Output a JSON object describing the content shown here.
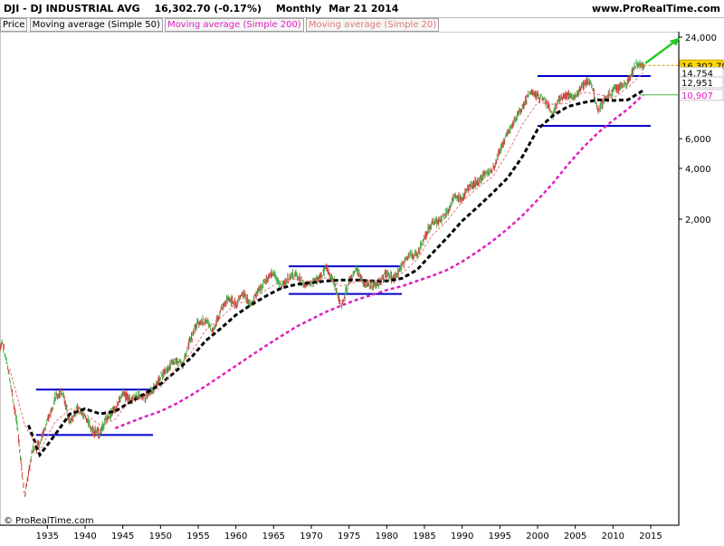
{
  "header": {
    "symbol": "DJI - DJ INDUSTRIAL AVG",
    "quote": "16,302.70 (-0.17%)",
    "period": "Monthly",
    "date": "Mar 21 2014",
    "site": "www.ProRealTime.com"
  },
  "legend": [
    {
      "label": "Price",
      "color": "#000000"
    },
    {
      "label": "Moving average (Simple 50)",
      "color": "#000000"
    },
    {
      "label": "Moving average (Simple 200)",
      "color": "#e020c0"
    },
    {
      "label": "Moving average (Simple 20)",
      "color": "#e07878"
    }
  ],
  "copyright": "© ProRealTime.com",
  "chart_data": {
    "type": "line",
    "scale": "log",
    "x_range": [
      1928,
      2018
    ],
    "y_ticks": [
      "24,000",
      "6,000",
      "4,000",
      "2,000"
    ],
    "y_tick_values": [
      24000,
      6000,
      4000,
      2000
    ],
    "x_ticks": [
      "1935",
      "1940",
      "1945",
      "1950",
      "1955",
      "1960",
      "1965",
      "1970",
      "1975",
      "1980",
      "1985",
      "1990",
      "1995",
      "2000",
      "2005",
      "2010",
      "2015"
    ],
    "x_tick_values": [
      1935,
      1940,
      1945,
      1950,
      1955,
      1960,
      1965,
      1970,
      1975,
      1980,
      1985,
      1990,
      1995,
      2000,
      2005,
      2010,
      2015
    ],
    "price_labels": [
      {
        "text": "16,302.70",
        "value": 16302.7,
        "bg": "#ffd700",
        "fg": "#000000"
      },
      {
        "text": "14,754",
        "value": 14754,
        "bg": "#ffffff",
        "fg": "#000000"
      },
      {
        "text": "12,951",
        "value": 12951,
        "bg": "#ffffff",
        "fg": "#000000"
      },
      {
        "text": "10,907",
        "value": 10907,
        "bg": "#ffffff",
        "fg": "#e020c0"
      }
    ],
    "series": [
      {
        "name": "Price",
        "color": "#48b048",
        "points": [
          [
            1928,
            270
          ],
          [
            1929,
            380
          ],
          [
            1930,
            230
          ],
          [
            1931,
            120
          ],
          [
            1932,
            45
          ],
          [
            1933,
            85
          ],
          [
            1934,
            95
          ],
          [
            1935,
            125
          ],
          [
            1936,
            175
          ],
          [
            1937,
            190
          ],
          [
            1938,
            125
          ],
          [
            1939,
            150
          ],
          [
            1940,
            135
          ],
          [
            1941,
            112
          ],
          [
            1942,
            108
          ],
          [
            1943,
            135
          ],
          [
            1944,
            150
          ],
          [
            1945,
            185
          ],
          [
            1946,
            170
          ],
          [
            1947,
            180
          ],
          [
            1948,
            178
          ],
          [
            1949,
            195
          ],
          [
            1950,
            230
          ],
          [
            1951,
            265
          ],
          [
            1952,
            290
          ],
          [
            1953,
            280
          ],
          [
            1954,
            390
          ],
          [
            1955,
            490
          ],
          [
            1956,
            500
          ],
          [
            1957,
            440
          ],
          [
            1958,
            580
          ],
          [
            1959,
            680
          ],
          [
            1960,
            620
          ],
          [
            1961,
            730
          ],
          [
            1962,
            610
          ],
          [
            1963,
            760
          ],
          [
            1964,
            870
          ],
          [
            1965,
            960
          ],
          [
            1966,
            790
          ],
          [
            1967,
            900
          ],
          [
            1968,
            940
          ],
          [
            1969,
            810
          ],
          [
            1970,
            830
          ],
          [
            1971,
            890
          ],
          [
            1972,
            1020
          ],
          [
            1973,
            850
          ],
          [
            1974,
            610
          ],
          [
            1975,
            860
          ],
          [
            1976,
            1000
          ],
          [
            1977,
            830
          ],
          [
            1978,
            800
          ],
          [
            1979,
            840
          ],
          [
            1980,
            960
          ],
          [
            1981,
            880
          ],
          [
            1982,
            1050
          ],
          [
            1983,
            1250
          ],
          [
            1984,
            1210
          ],
          [
            1985,
            1550
          ],
          [
            1986,
            1900
          ],
          [
            1987,
            1950
          ],
          [
            1988,
            2170
          ],
          [
            1989,
            2750
          ],
          [
            1990,
            2630
          ],
          [
            1991,
            3170
          ],
          [
            1992,
            3300
          ],
          [
            1993,
            3750
          ],
          [
            1994,
            3830
          ],
          [
            1995,
            5100
          ],
          [
            1996,
            6450
          ],
          [
            1997,
            7900
          ],
          [
            1998,
            9180
          ],
          [
            1999,
            11450
          ],
          [
            2000,
            10800
          ],
          [
            2001,
            10000
          ],
          [
            2002,
            8350
          ],
          [
            2003,
            10450
          ],
          [
            2004,
            10780
          ],
          [
            2005,
            10720
          ],
          [
            2006,
            12460
          ],
          [
            2007,
            13260
          ],
          [
            2008,
            8780
          ],
          [
            2009,
            10430
          ],
          [
            2010,
            11580
          ],
          [
            2011,
            12220
          ],
          [
            2012,
            13100
          ],
          [
            2013,
            16580
          ],
          [
            2014,
            16302
          ]
        ]
      },
      {
        "name": "Moving average (Simple 50)",
        "color": "#000000",
        "points": [
          [
            1932.5,
            120
          ],
          [
            1934,
            80
          ],
          [
            1936,
            105
          ],
          [
            1938,
            140
          ],
          [
            1940,
            150
          ],
          [
            1942,
            140
          ],
          [
            1944,
            145
          ],
          [
            1946,
            165
          ],
          [
            1948,
            185
          ],
          [
            1950,
            210
          ],
          [
            1952,
            250
          ],
          [
            1954,
            300
          ],
          [
            1956,
            380
          ],
          [
            1958,
            450
          ],
          [
            1960,
            540
          ],
          [
            1962,
            620
          ],
          [
            1964,
            700
          ],
          [
            1966,
            780
          ],
          [
            1968,
            820
          ],
          [
            1970,
            840
          ],
          [
            1972,
            860
          ],
          [
            1974,
            870
          ],
          [
            1976,
            870
          ],
          [
            1978,
            860
          ],
          [
            1980,
            860
          ],
          [
            1982,
            890
          ],
          [
            1984,
            1000
          ],
          [
            1986,
            1250
          ],
          [
            1988,
            1550
          ],
          [
            1990,
            1950
          ],
          [
            1992,
            2350
          ],
          [
            1994,
            2850
          ],
          [
            1996,
            3500
          ],
          [
            1998,
            4700
          ],
          [
            2000,
            6800
          ],
          [
            2002,
            8200
          ],
          [
            2004,
            9300
          ],
          [
            2006,
            9800
          ],
          [
            2008,
            10200
          ],
          [
            2010,
            10100
          ],
          [
            2012,
            10200
          ],
          [
            2014,
            11600
          ]
        ]
      },
      {
        "name": "Moving average (Simple 200)",
        "color": "#e020c0",
        "points": [
          [
            1944,
            115
          ],
          [
            1946,
            125
          ],
          [
            1948,
            135
          ],
          [
            1950,
            145
          ],
          [
            1952,
            160
          ],
          [
            1954,
            180
          ],
          [
            1956,
            205
          ],
          [
            1958,
            235
          ],
          [
            1960,
            270
          ],
          [
            1962,
            310
          ],
          [
            1964,
            355
          ],
          [
            1966,
            405
          ],
          [
            1968,
            460
          ],
          [
            1970,
            510
          ],
          [
            1972,
            565
          ],
          [
            1974,
            615
          ],
          [
            1976,
            665
          ],
          [
            1978,
            710
          ],
          [
            1980,
            760
          ],
          [
            1982,
            800
          ],
          [
            1984,
            860
          ],
          [
            1986,
            920
          ],
          [
            1988,
            1000
          ],
          [
            1990,
            1120
          ],
          [
            1992,
            1280
          ],
          [
            1994,
            1480
          ],
          [
            1996,
            1750
          ],
          [
            1998,
            2100
          ],
          [
            2000,
            2600
          ],
          [
            2002,
            3250
          ],
          [
            2004,
            4200
          ],
          [
            2006,
            5300
          ],
          [
            2008,
            6500
          ],
          [
            2010,
            7700
          ],
          [
            2012,
            9000
          ],
          [
            2014,
            10907
          ]
        ]
      },
      {
        "name": "Moving average (Simple 20)",
        "color": "#e07878",
        "points": [
          [
            1930,
            260
          ],
          [
            1932,
            120
          ],
          [
            1934,
            85
          ],
          [
            1936,
            125
          ],
          [
            1938,
            150
          ],
          [
            1940,
            140
          ],
          [
            1942,
            120
          ],
          [
            1944,
            130
          ],
          [
            1946,
            170
          ],
          [
            1948,
            178
          ],
          [
            1950,
            200
          ],
          [
            1952,
            260
          ],
          [
            1954,
            320
          ],
          [
            1956,
            440
          ],
          [
            1958,
            520
          ],
          [
            1960,
            630
          ],
          [
            1962,
            660
          ],
          [
            1964,
            760
          ],
          [
            1966,
            860
          ],
          [
            1968,
            880
          ],
          [
            1970,
            850
          ],
          [
            1972,
            900
          ],
          [
            1974,
            800
          ],
          [
            1976,
            850
          ],
          [
            1978,
            860
          ],
          [
            1980,
            880
          ],
          [
            1982,
            950
          ],
          [
            1984,
            1150
          ],
          [
            1986,
            1600
          ],
          [
            1988,
            1950
          ],
          [
            1990,
            2550
          ],
          [
            1992,
            3050
          ],
          [
            1994,
            3550
          ],
          [
            1996,
            4900
          ],
          [
            1998,
            7300
          ],
          [
            2000,
            9800
          ],
          [
            2002,
            9600
          ],
          [
            2004,
            9700
          ],
          [
            2006,
            11300
          ],
          [
            2008,
            11000
          ],
          [
            2010,
            10400
          ],
          [
            2012,
            12100
          ],
          [
            2014,
            14754
          ]
        ]
      }
    ],
    "channels": [
      {
        "x": [
          1933.5,
          1949
        ],
        "values": [
          195,
          105
        ]
      },
      {
        "x": [
          1967,
          1982
        ],
        "values": [
          1050,
          720
        ]
      },
      {
        "x": [
          2000,
          2015
        ],
        "values": [
          14100,
          7150
        ]
      }
    ]
  }
}
